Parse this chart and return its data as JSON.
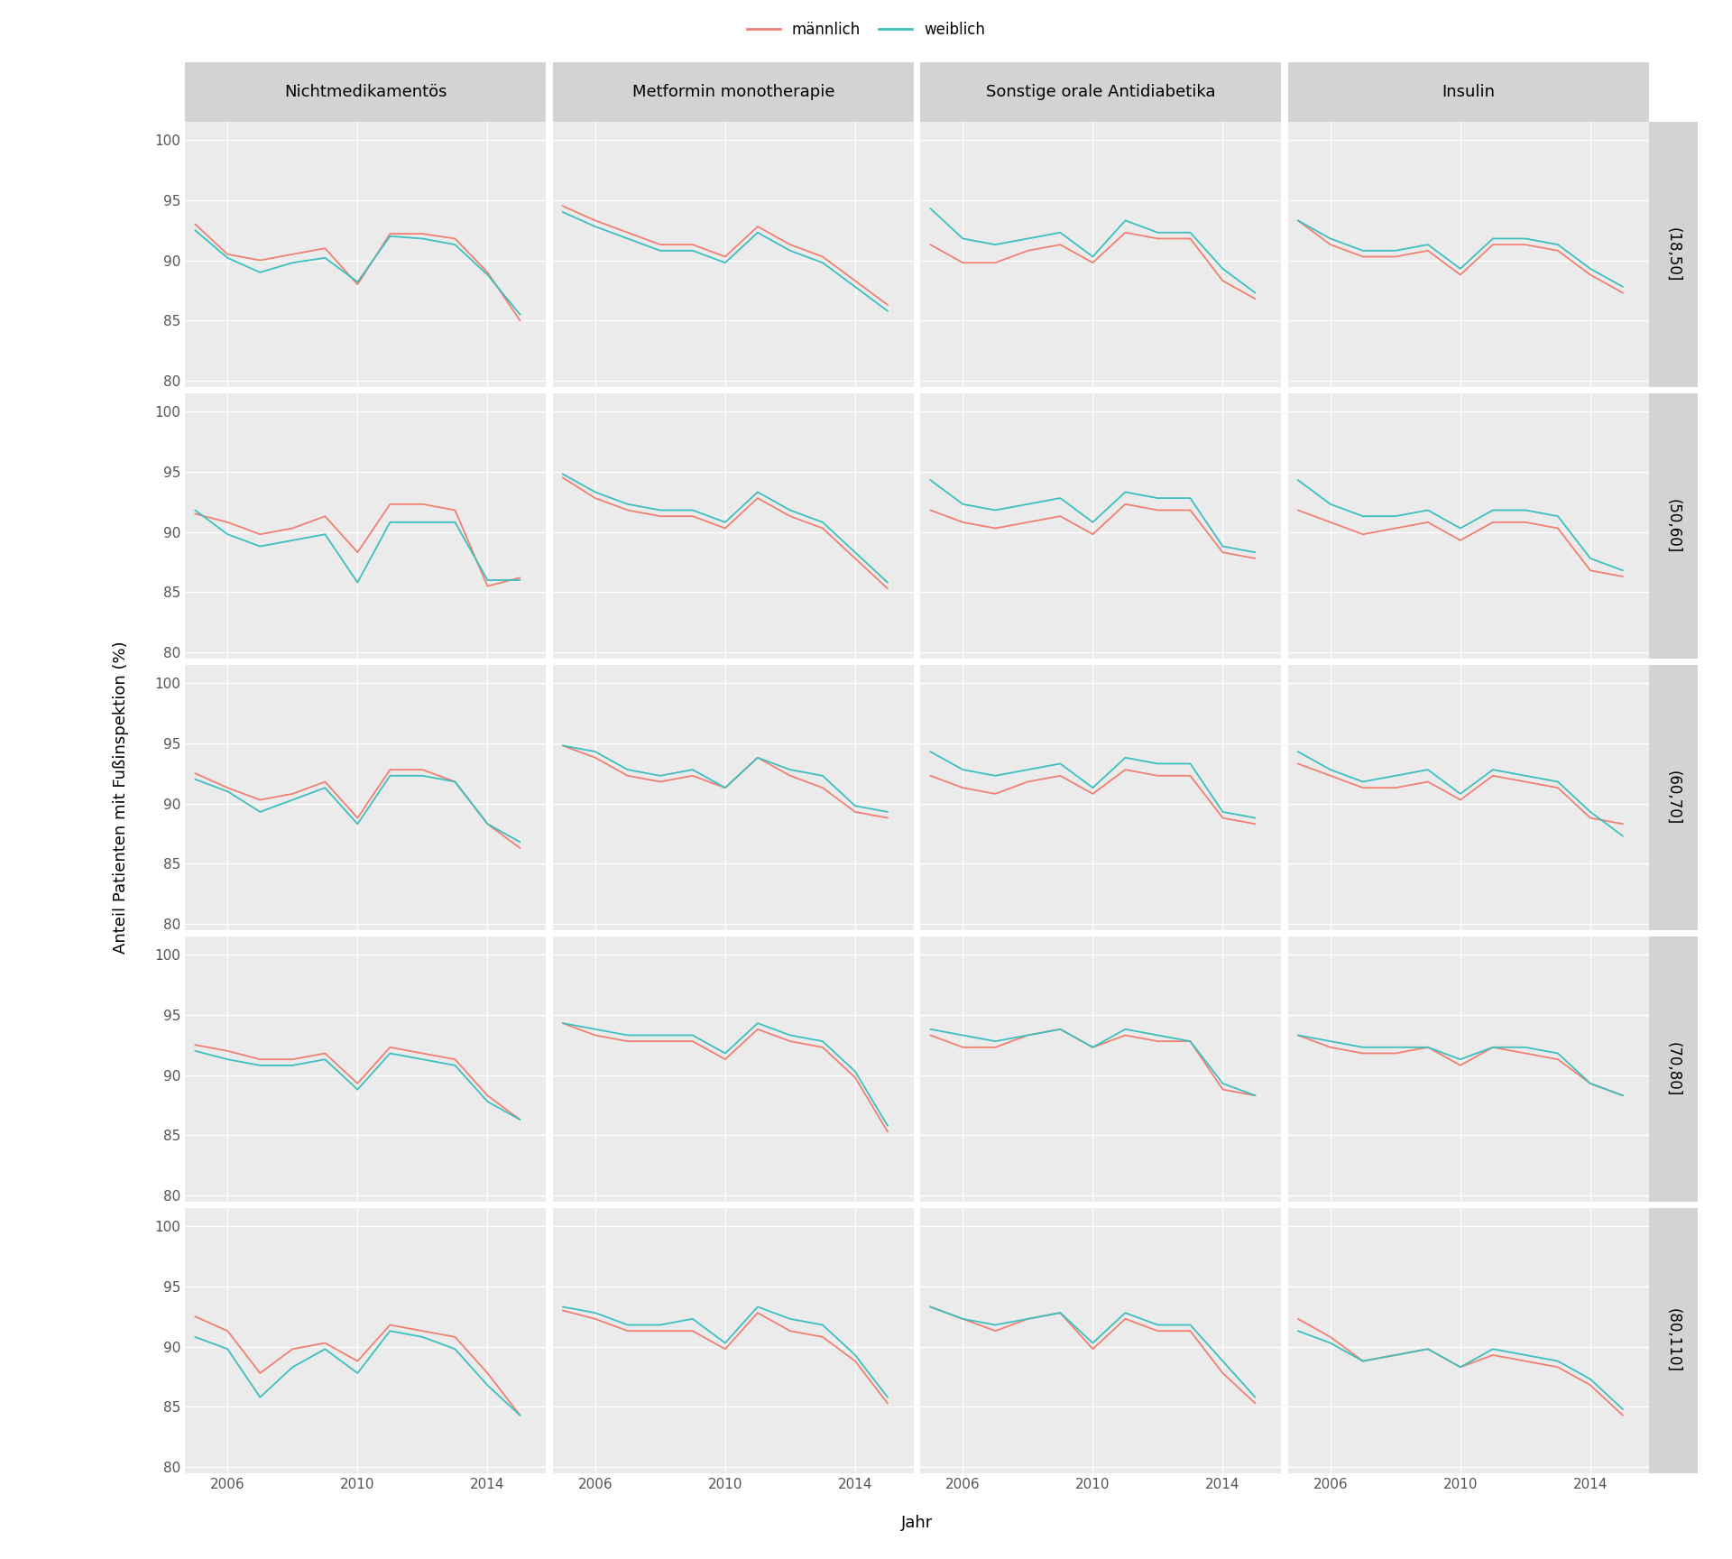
{
  "years": [
    2005,
    2006,
    2007,
    2008,
    2009,
    2010,
    2011,
    2012,
    2013,
    2014,
    2015
  ],
  "col_labels": [
    "Nichtmedikamentös",
    "Metformin monotherapie",
    "Sonstige orale Antidiabetika",
    "Insulin"
  ],
  "row_labels": [
    "(18,50]",
    "(50,60]",
    "(60,70]",
    "(70,80]",
    "(80,110]"
  ],
  "color_maennlich": "#F08070",
  "color_weiblich": "#3DBFBF",
  "ylabel": "Anteil Patienten mit Fußinspektion (%)",
  "xlabel": "Jahr",
  "panel_bg": "#EBEBEB",
  "strip_bg": "#D3D3D3",
  "ylim": [
    79.5,
    101.5
  ],
  "yticks": [
    80,
    85,
    90,
    95,
    100
  ],
  "xticks": [
    2006,
    2010,
    2014
  ],
  "data": {
    "Nichtmedikamentös": {
      "(18,50]": {
        "maennlich": [
          93.0,
          90.5,
          90.0,
          90.5,
          91.0,
          88.0,
          92.2,
          92.2,
          91.8,
          89.0,
          85.0
        ],
        "weiblich": [
          92.5,
          90.2,
          89.0,
          89.8,
          90.2,
          88.2,
          92.0,
          91.8,
          91.3,
          88.8,
          85.5
        ]
      },
      "(50,60]": {
        "maennlich": [
          91.5,
          90.8,
          89.8,
          90.3,
          91.3,
          88.3,
          92.3,
          92.3,
          91.8,
          85.5,
          86.2
        ],
        "weiblich": [
          91.8,
          89.8,
          88.8,
          89.3,
          89.8,
          85.8,
          90.8,
          90.8,
          90.8,
          86.0,
          86.0
        ]
      },
      "(60,70]": {
        "maennlich": [
          92.5,
          91.3,
          90.3,
          90.8,
          91.8,
          88.8,
          92.8,
          92.8,
          91.8,
          88.3,
          86.3
        ],
        "weiblich": [
          92.0,
          91.0,
          89.3,
          90.3,
          91.3,
          88.3,
          92.3,
          92.3,
          91.8,
          88.3,
          86.8
        ]
      },
      "(70,80]": {
        "maennlich": [
          92.5,
          92.0,
          91.3,
          91.3,
          91.8,
          89.3,
          92.3,
          91.8,
          91.3,
          88.3,
          86.3
        ],
        "weiblich": [
          92.0,
          91.3,
          90.8,
          90.8,
          91.3,
          88.8,
          91.8,
          91.3,
          90.8,
          87.8,
          86.3
        ]
      },
      "(80,110]": {
        "maennlich": [
          92.5,
          91.3,
          87.8,
          89.8,
          90.3,
          88.8,
          91.8,
          91.3,
          90.8,
          87.8,
          84.3
        ],
        "weiblich": [
          90.8,
          89.8,
          85.8,
          88.3,
          89.8,
          87.8,
          91.3,
          90.8,
          89.8,
          86.8,
          84.3
        ]
      }
    },
    "Metformin monotherapie": {
      "(18,50]": {
        "maennlich": [
          94.5,
          93.3,
          92.3,
          91.3,
          91.3,
          90.3,
          92.8,
          91.3,
          90.3,
          88.3,
          86.3
        ],
        "weiblich": [
          94.0,
          92.8,
          91.8,
          90.8,
          90.8,
          89.8,
          92.3,
          90.8,
          89.8,
          87.8,
          85.8
        ]
      },
      "(50,60]": {
        "maennlich": [
          94.5,
          92.8,
          91.8,
          91.3,
          91.3,
          90.3,
          92.8,
          91.3,
          90.3,
          87.8,
          85.3
        ],
        "weiblich": [
          94.8,
          93.3,
          92.3,
          91.8,
          91.8,
          90.8,
          93.3,
          91.8,
          90.8,
          88.3,
          85.8
        ]
      },
      "(60,70]": {
        "maennlich": [
          94.8,
          93.8,
          92.3,
          91.8,
          92.3,
          91.3,
          93.8,
          92.3,
          91.3,
          89.3,
          88.8
        ],
        "weiblich": [
          94.8,
          94.3,
          92.8,
          92.3,
          92.8,
          91.3,
          93.8,
          92.8,
          92.3,
          89.8,
          89.3
        ]
      },
      "(70,80]": {
        "maennlich": [
          94.3,
          93.3,
          92.8,
          92.8,
          92.8,
          91.3,
          93.8,
          92.8,
          92.3,
          89.8,
          85.3
        ],
        "weiblich": [
          94.3,
          93.8,
          93.3,
          93.3,
          93.3,
          91.8,
          94.3,
          93.3,
          92.8,
          90.3,
          85.8
        ]
      },
      "(80,110]": {
        "maennlich": [
          93.0,
          92.3,
          91.3,
          91.3,
          91.3,
          89.8,
          92.8,
          91.3,
          90.8,
          88.8,
          85.3
        ],
        "weiblich": [
          93.3,
          92.8,
          91.8,
          91.8,
          92.3,
          90.3,
          93.3,
          92.3,
          91.8,
          89.3,
          85.8
        ]
      }
    },
    "Sonstige orale Antidiabetika": {
      "(18,50]": {
        "maennlich": [
          91.3,
          89.8,
          89.8,
          90.8,
          91.3,
          89.8,
          92.3,
          91.8,
          91.8,
          88.3,
          86.8
        ],
        "weiblich": [
          94.3,
          91.8,
          91.3,
          91.8,
          92.3,
          90.3,
          93.3,
          92.3,
          92.3,
          89.3,
          87.3
        ]
      },
      "(50,60]": {
        "maennlich": [
          91.8,
          90.8,
          90.3,
          90.8,
          91.3,
          89.8,
          92.3,
          91.8,
          91.8,
          88.3,
          87.8
        ],
        "weiblich": [
          94.3,
          92.3,
          91.8,
          92.3,
          92.8,
          90.8,
          93.3,
          92.8,
          92.8,
          88.8,
          88.3
        ]
      },
      "(60,70]": {
        "maennlich": [
          92.3,
          91.3,
          90.8,
          91.8,
          92.3,
          90.8,
          92.8,
          92.3,
          92.3,
          88.8,
          88.3
        ],
        "weiblich": [
          94.3,
          92.8,
          92.3,
          92.8,
          93.3,
          91.3,
          93.8,
          93.3,
          93.3,
          89.3,
          88.8
        ]
      },
      "(70,80]": {
        "maennlich": [
          93.3,
          92.3,
          92.3,
          93.3,
          93.8,
          92.3,
          93.3,
          92.8,
          92.8,
          88.8,
          88.3
        ],
        "weiblich": [
          93.8,
          93.3,
          92.8,
          93.3,
          93.8,
          92.3,
          93.8,
          93.3,
          92.8,
          89.3,
          88.3
        ]
      },
      "(80,110]": {
        "maennlich": [
          93.3,
          92.3,
          91.3,
          92.3,
          92.8,
          89.8,
          92.3,
          91.3,
          91.3,
          87.8,
          85.3
        ],
        "weiblich": [
          93.3,
          92.3,
          91.8,
          92.3,
          92.8,
          90.3,
          92.8,
          91.8,
          91.8,
          88.8,
          85.8
        ]
      }
    },
    "Insulin": {
      "(18,50]": {
        "maennlich": [
          93.3,
          91.3,
          90.3,
          90.3,
          90.8,
          88.8,
          91.3,
          91.3,
          90.8,
          88.8,
          87.3
        ],
        "weiblich": [
          93.3,
          91.8,
          90.8,
          90.8,
          91.3,
          89.3,
          91.8,
          91.8,
          91.3,
          89.3,
          87.8
        ]
      },
      "(50,60]": {
        "maennlich": [
          91.8,
          90.8,
          89.8,
          90.3,
          90.8,
          89.3,
          90.8,
          90.8,
          90.3,
          86.8,
          86.3
        ],
        "weiblich": [
          94.3,
          92.3,
          91.3,
          91.3,
          91.8,
          90.3,
          91.8,
          91.8,
          91.3,
          87.8,
          86.8
        ]
      },
      "(60,70]": {
        "maennlich": [
          93.3,
          92.3,
          91.3,
          91.3,
          91.8,
          90.3,
          92.3,
          91.8,
          91.3,
          88.8,
          88.3
        ],
        "weiblich": [
          94.3,
          92.8,
          91.8,
          92.3,
          92.8,
          90.8,
          92.8,
          92.3,
          91.8,
          89.3,
          87.3
        ]
      },
      "(70,80]": {
        "maennlich": [
          93.3,
          92.3,
          91.8,
          91.8,
          92.3,
          90.8,
          92.3,
          91.8,
          91.3,
          89.3,
          88.3
        ],
        "weiblich": [
          93.3,
          92.8,
          92.3,
          92.3,
          92.3,
          91.3,
          92.3,
          92.3,
          91.8,
          89.3,
          88.3
        ]
      },
      "(80,110]": {
        "maennlich": [
          92.3,
          90.8,
          88.8,
          89.3,
          89.8,
          88.3,
          89.3,
          88.8,
          88.3,
          86.8,
          84.3
        ],
        "weiblich": [
          91.3,
          90.3,
          88.8,
          89.3,
          89.8,
          88.3,
          89.8,
          89.3,
          88.8,
          87.3,
          84.8
        ]
      }
    }
  }
}
